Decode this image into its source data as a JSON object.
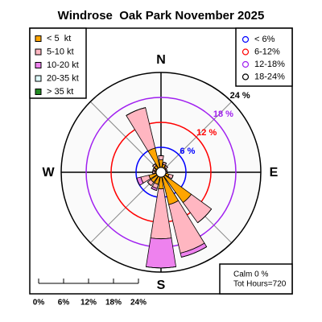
{
  "chart_data": {
    "type": "windrose",
    "title": "Windrose  Oak Park November 2025",
    "directions": [
      "N",
      null,
      null,
      null,
      "E",
      null,
      null,
      null,
      "S",
      null,
      null,
      null,
      "W",
      null,
      null,
      null
    ],
    "series": [
      {
        "name": "< 5  kt",
        "color": "#ffa500",
        "values": [
          3,
          2,
          1.5,
          1,
          1,
          2,
          9,
          8,
          4,
          3,
          3,
          3,
          1.5,
          1.5,
          2,
          6
        ]
      },
      {
        "name": "5-10 kt",
        "color": "#ffb6c1",
        "values": [
          1,
          0.5,
          0.5,
          0.5,
          0.5,
          1,
          6,
          12,
          12,
          1,
          1,
          2,
          0.5,
          0.5,
          0.5,
          10
        ]
      },
      {
        "name": "10-20 kt",
        "color": "#ee82ee",
        "values": [
          0,
          0,
          0,
          0,
          0,
          0,
          0,
          1,
          7,
          0.5,
          0,
          1,
          0,
          0,
          0,
          0
        ]
      },
      {
        "name": "20-35 kt",
        "color": "#e0ffff",
        "values": [
          0,
          0,
          0,
          0,
          0,
          0,
          0,
          0,
          0,
          0,
          0,
          0,
          0,
          0,
          0,
          0
        ]
      },
      {
        "name": "> 35 kt",
        "color": "#228b22",
        "values": [
          0,
          0,
          0,
          0,
          0,
          0,
          0,
          0,
          0,
          0,
          0,
          0,
          0,
          0,
          0,
          0
        ]
      }
    ],
    "rlim": [
      0,
      24
    ],
    "rings": [
      {
        "value": 6,
        "label": "6 %",
        "color": "#0000ff"
      },
      {
        "value": 12,
        "label": "12 %",
        "color": "#ff0000"
      },
      {
        "value": 18,
        "label": "18 %",
        "color": "#a020f0"
      },
      {
        "value": 24,
        "label": "24 %",
        "color": "#000000"
      }
    ],
    "ring_legend": [
      "< 6%",
      "6-12%",
      "12-18%",
      "18-24%"
    ],
    "scale_ticks": [
      {
        "value": 0,
        "label": "0%"
      },
      {
        "value": 6,
        "label": "6%"
      },
      {
        "value": 12,
        "label": "12%"
      },
      {
        "value": 18,
        "label": "18%"
      },
      {
        "value": 24,
        "label": "24%"
      }
    ],
    "calm": "Calm 0 %",
    "total": "Tot Hours=720"
  }
}
